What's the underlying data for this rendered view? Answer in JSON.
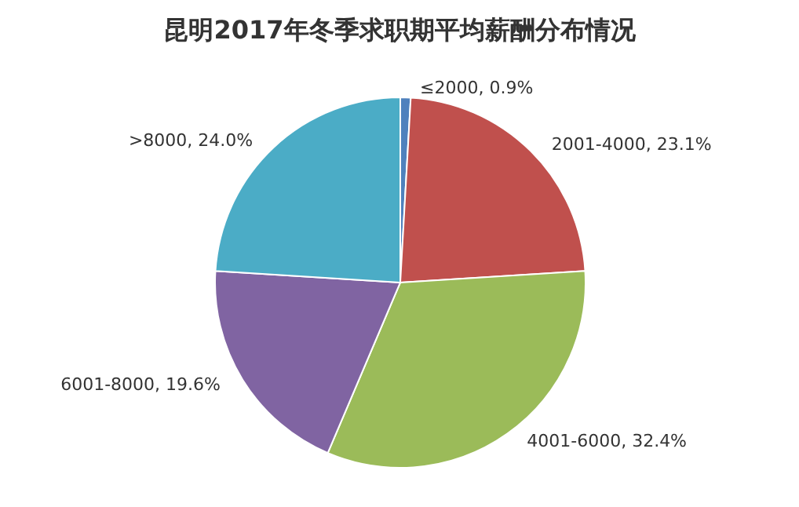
{
  "chart_data": {
    "type": "pie",
    "title": "昆明2017年冬季求职期平均薪酬分布情况",
    "categories": [
      "≤2000",
      "2001-4000",
      "4001-6000",
      "6001-8000",
      ">8000"
    ],
    "values": [
      0.9,
      23.1,
      32.4,
      19.6,
      24.0
    ],
    "value_labels": [
      "0.9%",
      "23.1%",
      "32.4%",
      "19.6%",
      "24.0%"
    ],
    "colors": [
      "#4f81bd",
      "#c0504d",
      "#9bbb59",
      "#8064a2",
      "#4bacc6"
    ],
    "legend": false
  }
}
